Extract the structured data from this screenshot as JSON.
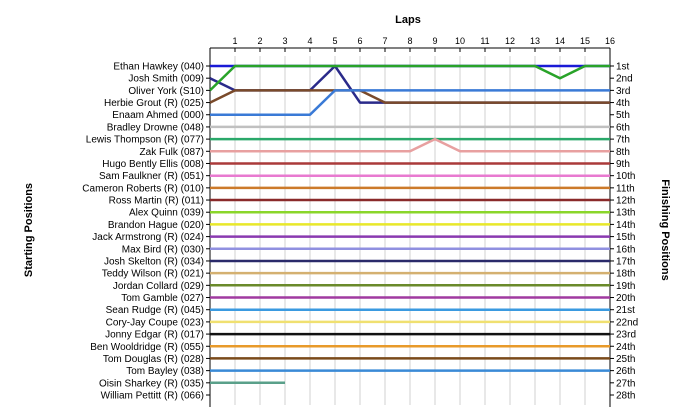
{
  "chart_data": {
    "type": "line",
    "title": "",
    "xlabel": "Laps",
    "ylabel_left": "Starting Positions",
    "ylabel_right": "Finishing Positions",
    "laps": [
      "1",
      "2",
      "3",
      "4",
      "5",
      "6",
      "7",
      "8",
      "9",
      "10",
      "11",
      "12",
      "13",
      "14",
      "15",
      "16"
    ],
    "xlim": [
      0,
      16
    ],
    "ylim": [
      1,
      28
    ],
    "finishing_positions": [
      "1st",
      "2nd",
      "3rd",
      "4th",
      "5th",
      "6th",
      "7th",
      "8th",
      "9th",
      "10th",
      "11th",
      "12th",
      "13th",
      "14th",
      "15th",
      "16th",
      "17th",
      "18th",
      "19th",
      "20th",
      "21st",
      "22nd",
      "23rd",
      "24th",
      "25th",
      "26th",
      "27th",
      "28th"
    ],
    "series": [
      {
        "name": "Ethan Hawkey (040)",
        "color": "#1a1ad6",
        "values": [
          1,
          1,
          1,
          1,
          1,
          1,
          1,
          1,
          1,
          1,
          1,
          1,
          1,
          1,
          1,
          1,
          1
        ]
      },
      {
        "name": "Josh Smith (009)",
        "color": "#2a2a8a",
        "values": [
          2,
          3,
          3,
          3,
          3,
          1,
          4,
          4,
          4,
          4,
          4,
          4,
          4,
          4,
          4,
          4,
          4
        ]
      },
      {
        "name": "Oliver York (S10)",
        "color": "#29a329",
        "values": [
          3,
          1,
          1,
          1,
          1,
          1,
          1,
          1,
          1,
          1,
          1,
          1,
          1,
          1,
          2,
          1,
          1
        ]
      },
      {
        "name": "Herbie Grout  (R) (025)",
        "color": "#7a4a2a",
        "values": [
          4,
          3,
          3,
          3,
          3,
          3,
          3,
          4,
          4,
          4,
          4,
          4,
          4,
          4,
          4,
          4,
          4
        ]
      },
      {
        "name": "Enaam Ahmed (000)",
        "color": "#3a7ad6",
        "values": [
          5,
          5,
          5,
          5,
          5,
          3,
          3,
          3,
          3,
          3,
          3,
          3,
          3,
          3,
          3,
          3,
          3
        ]
      },
      {
        "name": "Bradley Drowne (048)",
        "color": "#c0c0c0",
        "values": [
          6,
          6,
          6,
          6,
          6,
          6,
          6,
          6,
          6,
          6,
          6,
          6,
          6,
          6,
          6,
          6,
          6
        ]
      },
      {
        "name": "Lewis Thompson (R) (077)",
        "color": "#2aa86a",
        "values": [
          7,
          7,
          7,
          7,
          7,
          7,
          7,
          7,
          7,
          7,
          7,
          7,
          7,
          7,
          7,
          7,
          7
        ]
      },
      {
        "name": "Zak Fulk (087)",
        "color": "#e8a0a0",
        "values": [
          8,
          8,
          8,
          8,
          8,
          8,
          8,
          8,
          8,
          7,
          8,
          8,
          8,
          8,
          8,
          8,
          8
        ]
      },
      {
        "name": "Hugo Bently Ellis (008)",
        "color": "#aa3a3a",
        "values": [
          9,
          9,
          9,
          9,
          9,
          9,
          9,
          9,
          9,
          9,
          9,
          9,
          9,
          9,
          9,
          9,
          9
        ]
      },
      {
        "name": "Sam Faulkner  (R) (051)",
        "color": "#e87ad0",
        "values": [
          10,
          10,
          10,
          10,
          10,
          10,
          10,
          10,
          10,
          10,
          10,
          10,
          10,
          10,
          10,
          10,
          10
        ]
      },
      {
        "name": "Cameron Roberts  (R) (010)",
        "color": "#cc7a2a",
        "values": [
          11,
          11,
          11,
          11,
          11,
          11,
          11,
          11,
          11,
          11,
          11,
          11,
          11,
          11,
          11,
          11,
          11
        ]
      },
      {
        "name": "Ross Martin  (R) (011)",
        "color": "#8a2a2a",
        "values": [
          12,
          12,
          12,
          12,
          12,
          12,
          12,
          12,
          12,
          12,
          12,
          12,
          12,
          12,
          12,
          12,
          12
        ]
      },
      {
        "name": "Alex Quinn (039)",
        "color": "#8ad62a",
        "values": [
          13,
          13,
          13,
          13,
          13,
          13,
          13,
          13,
          13,
          13,
          13,
          13,
          13,
          13,
          13,
          13,
          13
        ]
      },
      {
        "name": "Brandon Hague (020)",
        "color": "#e8e82a",
        "values": [
          14,
          14,
          14,
          14,
          14,
          14,
          14,
          14,
          14,
          14,
          14,
          14,
          14,
          14,
          14,
          14,
          14
        ]
      },
      {
        "name": "Jack Armstrong  (R) (024)",
        "color": "#8a3ab0",
        "values": [
          15,
          15,
          15,
          15,
          15,
          15,
          15,
          15,
          15,
          15,
          15,
          15,
          15,
          15,
          15,
          15,
          15
        ]
      },
      {
        "name": "Max Bird  (R) (030)",
        "color": "#9090e0",
        "values": [
          16,
          16,
          16,
          16,
          16,
          16,
          16,
          16,
          16,
          16,
          16,
          16,
          16,
          16,
          16,
          16,
          16
        ]
      },
      {
        "name": "Josh Skelton  (R) (034)",
        "color": "#2a2a6a",
        "values": [
          17,
          17,
          17,
          17,
          17,
          17,
          17,
          17,
          17,
          17,
          17,
          17,
          17,
          17,
          17,
          17,
          17
        ]
      },
      {
        "name": "Teddy Wilson  (R) (021)",
        "color": "#d4b070",
        "values": [
          18,
          18,
          18,
          18,
          18,
          18,
          18,
          18,
          18,
          18,
          18,
          18,
          18,
          18,
          18,
          18,
          18
        ]
      },
      {
        "name": "Jordan Collard (029)",
        "color": "#6a8a2a",
        "values": [
          19,
          19,
          19,
          19,
          19,
          19,
          19,
          19,
          19,
          19,
          19,
          19,
          19,
          19,
          19,
          19,
          19
        ]
      },
      {
        "name": "Tom Gamble (027)",
        "color": "#a03aa0",
        "values": [
          20,
          20,
          20,
          20,
          20,
          20,
          20,
          20,
          20,
          20,
          20,
          20,
          20,
          20,
          20,
          20,
          20
        ]
      },
      {
        "name": "Sean Rudge (R) (045)",
        "color": "#3a9ae0",
        "values": [
          21,
          21,
          21,
          21,
          21,
          21,
          21,
          21,
          21,
          21,
          21,
          21,
          21,
          21,
          21,
          21,
          21
        ]
      },
      {
        "name": "Cory-Jay Coupe (023)",
        "color": "#f0e070",
        "values": [
          22,
          22,
          22,
          22,
          22,
          22,
          22,
          22,
          22,
          22,
          22,
          22,
          22,
          22,
          22,
          22,
          22
        ]
      },
      {
        "name": "Jonny Edgar (R) (017)",
        "color": "#111111",
        "values": [
          23,
          23,
          23,
          23,
          23,
          23,
          23,
          23,
          23,
          23,
          23,
          23,
          23,
          23,
          23,
          23,
          23
        ]
      },
      {
        "name": "Ben Wooldridge (R) (055)",
        "color": "#e89a2a",
        "values": [
          24,
          24,
          24,
          24,
          24,
          24,
          24,
          24,
          24,
          24,
          24,
          24,
          24,
          24,
          24,
          24,
          24
        ]
      },
      {
        "name": "Tom Douglas  (R) (028)",
        "color": "#7a4a1a",
        "values": [
          25,
          25,
          25,
          25,
          25,
          25,
          25,
          25,
          25,
          25,
          25,
          25,
          25,
          25,
          25,
          25,
          25
        ]
      },
      {
        "name": "Tom Bayley (038)",
        "color": "#3a8ad6",
        "values": [
          26,
          26,
          26,
          26,
          26,
          26,
          26,
          26,
          26,
          26,
          26,
          26,
          26,
          26,
          26,
          26,
          26
        ]
      },
      {
        "name": "Oisin Sharkey (R) (035)",
        "color": "#5aa08a",
        "values": [
          27,
          27,
          27,
          27
        ]
      },
      {
        "name": "William Pettitt (R) (066)",
        "color": "#2a2a2a",
        "values": [
          28
        ]
      }
    ]
  }
}
